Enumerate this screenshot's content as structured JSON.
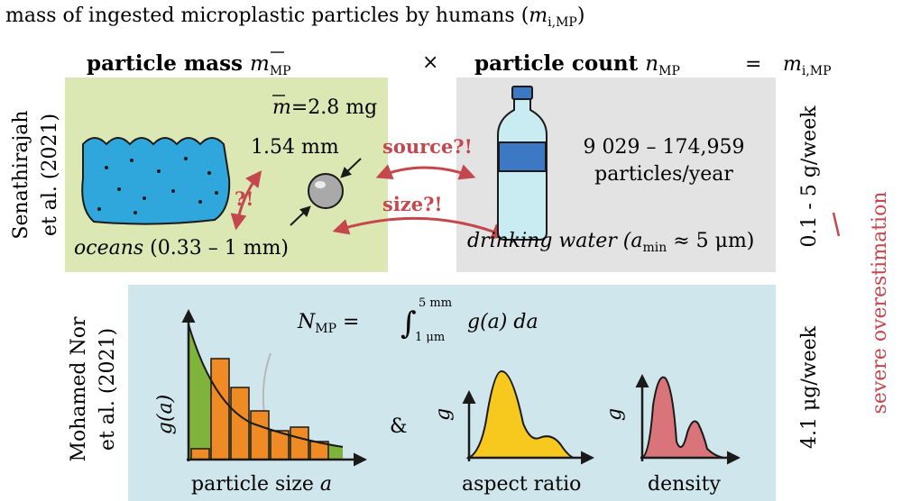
{
  "title": {
    "main": "mass of ingested microplastic particles by humans (",
    "sym": "m",
    "sub": "i,MP",
    "end": ")"
  },
  "header": {
    "mass_label": "particle mass ",
    "mass_sym": "m",
    "mass_sub": "MP",
    "times": "×",
    "count_label": "particle count ",
    "count_sym": "n",
    "count_sub": "MP",
    "equals": "=",
    "result_sym": "m",
    "result_sub": "i,MP"
  },
  "study1": {
    "author_line1": "Senathirajah",
    "author_line2": "et al. (2021)",
    "mass_sym": "m",
    "mass_value": "=2.8 mg",
    "diameter": "1.54 mm",
    "oceans_label": "oceans",
    "oceans_range": " (0.33 – 1 mm)",
    "question": "?!",
    "source": "source?!",
    "size": "size?!",
    "count_range": "9 029 – 174,959",
    "count_unit": "particles/year",
    "water_label": "drinking water (",
    "water_sym": "a",
    "water_sub": "min",
    "water_value": " ≈ 5 μm)",
    "result": "0.1 - 5 g/week"
  },
  "study2": {
    "author_line1": "Mohamed Nor",
    "author_line2": "et al. (2021)",
    "formula_N": "N",
    "formula_sub": "MP",
    "formula_eq": " = ",
    "integral": "∫",
    "upper": "5 mm",
    "lower": "1 μm",
    "integrand": " g(a) da",
    "y_axis": "g(a)",
    "x_axis": "particle size ",
    "x_axis_sym": "a",
    "ampersand": "&",
    "aspect_y": "g",
    "aspect_label": "aspect ratio",
    "density_y": "g",
    "density_label": "density",
    "result": "4.1 μg/week"
  },
  "conclusion": "severe overestimation",
  "colors": {
    "green_panel": "#dce8b4",
    "gray_panel": "#e3e3e3",
    "blue_panel": "#cfe6ec",
    "red": "#c4474e",
    "ocean": "#2fa6dc",
    "bars": "#f08a24",
    "green_fill": "#7fb33b",
    "yellow_fill": "#f7c81d",
    "pink_fill": "#d8747a"
  }
}
